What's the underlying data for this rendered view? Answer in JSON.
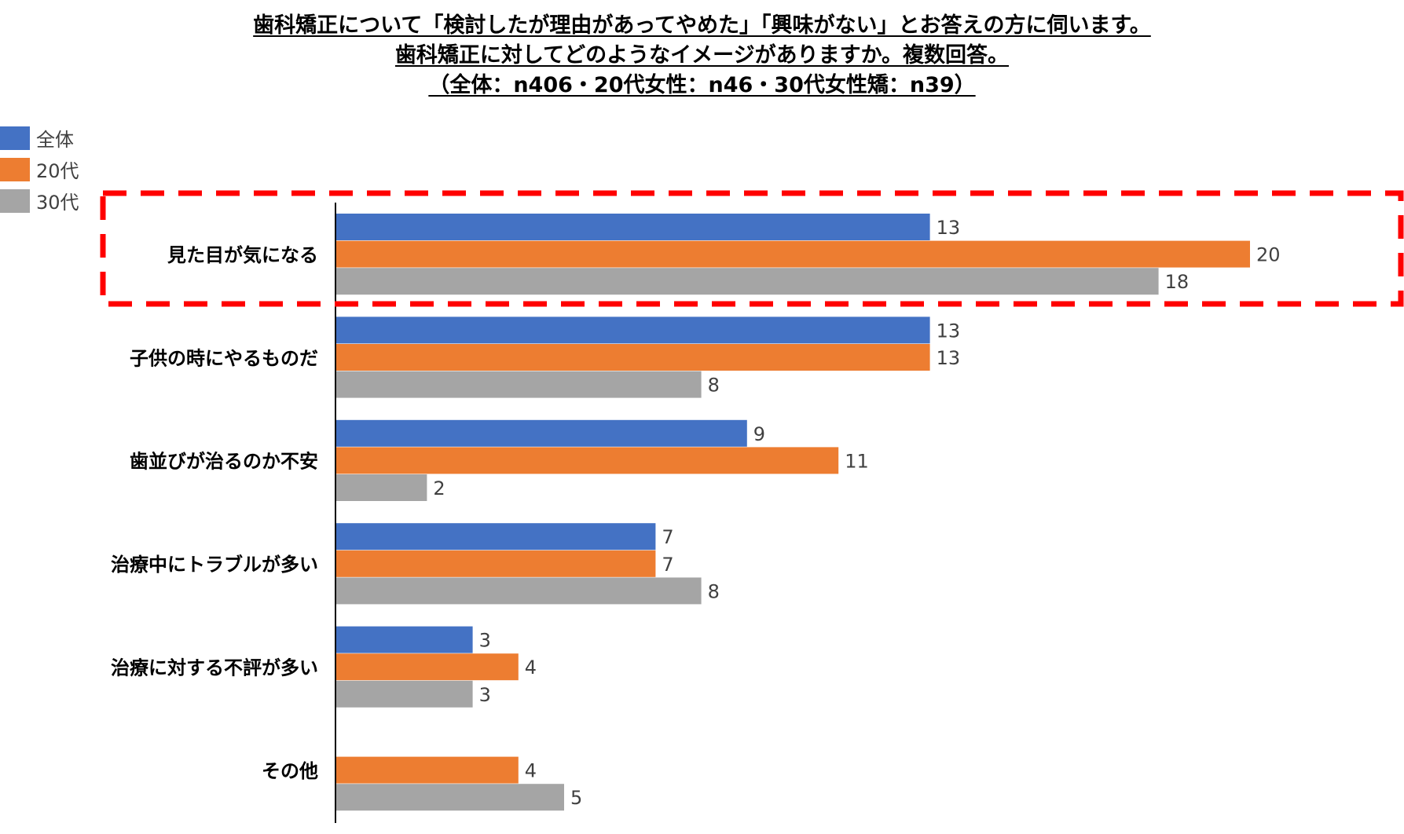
{
  "chart_data": {
    "type": "bar",
    "orientation": "horizontal",
    "title_lines": [
      "歯科矯正について「検討したが理由があってやめた」「興味がない」とお答えの方に伺います。",
      "歯科矯正に対してどのようなイメージがありますか。複数回答。",
      "（全体：n406・20代女性：n46・30代女性矯：n39）"
    ],
    "categories": [
      "見た目が気になる",
      "子供の時にやるものだ",
      "歯並びが治るのか不安",
      "治療中にトラブルが多い",
      "治療に対する不評が多い",
      "その他"
    ],
    "series": [
      {
        "name": "全体",
        "color": "#4472C4",
        "values": [
          13,
          13,
          9,
          7,
          3,
          null
        ]
      },
      {
        "name": "20代",
        "color": "#ED7D31",
        "values": [
          20,
          13,
          11,
          7,
          4,
          4
        ]
      },
      {
        "name": "30代",
        "color": "#A5A5A5",
        "values": [
          18,
          8,
          2,
          8,
          3,
          5
        ]
      }
    ],
    "highlight": {
      "category": "見た目が気になる",
      "label_color": "#E8231A",
      "box_style": "dashed",
      "box_color": "#FF0000"
    },
    "legend_position": "top-left",
    "xlim": [
      0,
      21
    ],
    "grid": false,
    "xlabel": "",
    "ylabel": ""
  }
}
